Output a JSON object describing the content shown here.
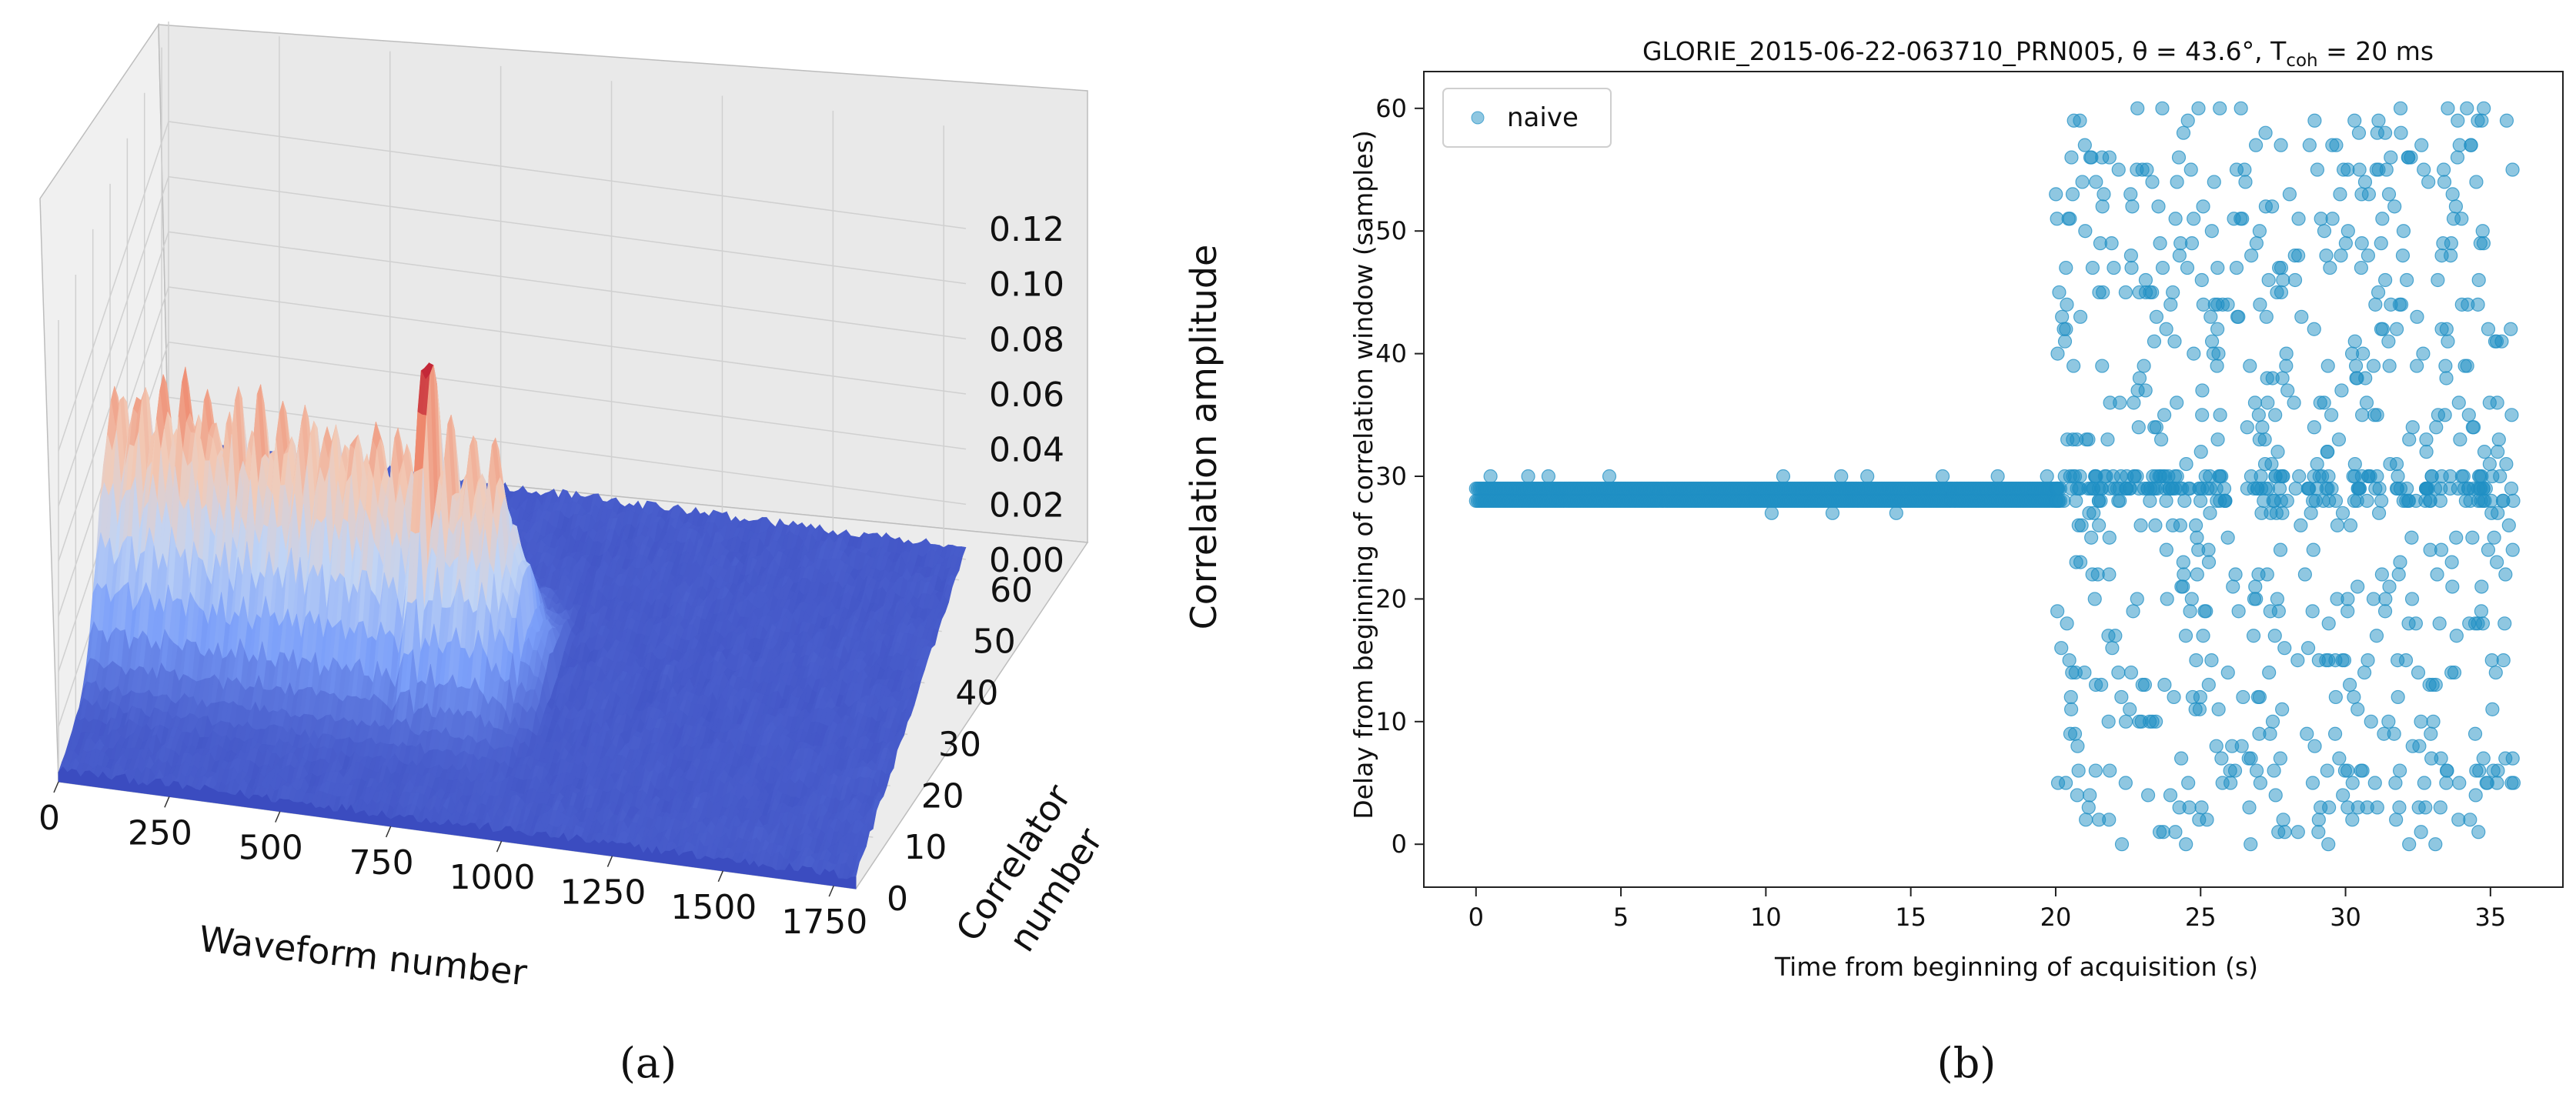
{
  "chart_data": [
    {
      "type": "surface3d",
      "panel_label": "(a)",
      "xlabel": "Waveform number",
      "ylabel": "Correlator number",
      "zlabel": "Correlation amplitude",
      "x_ticks": [
        "0",
        "250",
        "500",
        "750",
        "1000",
        "1250",
        "1500",
        "1750"
      ],
      "y_ticks": [
        "0",
        "10",
        "20",
        "30",
        "40",
        "50",
        "60"
      ],
      "z_ticks": [
        "0.00",
        "0.02",
        "0.04",
        "0.06",
        "0.08",
        "0.10",
        "0.12"
      ],
      "xlim": [
        0,
        1800
      ],
      "ylim": [
        0,
        64
      ],
      "zlim": [
        0,
        0.12
      ],
      "signal_region_waveforms": [
        0,
        1000
      ],
      "peak_correlator": 29,
      "peak_amplitude": 0.117,
      "peak_waveform": 720,
      "typical_signal_amplitude": [
        0.055,
        0.095
      ],
      "noise_floor_amplitude": 0.004,
      "colormap": [
        "#3b4cc0",
        "#7b9ff9",
        "#c0d4f5",
        "#f2cbb7",
        "#ee8468",
        "#b40426"
      ],
      "grid": true
    },
    {
      "type": "scatter",
      "panel_label": "(b)",
      "title": "GLORIE_2015-06-22-063710_PRN005, θ = 43.6°, T",
      "title_sub": "coh",
      "title_end": " = 20 ms",
      "xlabel": "Time from beginning of acquisition (s)",
      "ylabel": "Delay from beginning of correlation window (samples)",
      "x_ticks": [
        "0",
        "5",
        "10",
        "15",
        "20",
        "25",
        "30",
        "35"
      ],
      "y_ticks": [
        "0",
        "10",
        "20",
        "30",
        "40",
        "50",
        "60"
      ],
      "xlim": [
        -1.8,
        37.5
      ],
      "ylim": [
        -3.5,
        63
      ],
      "legend": {
        "label": "naive",
        "placement": "upper-left"
      },
      "marker_color": "#1f8fc4",
      "marker_alpha": 0.5,
      "tracked_segment": {
        "t_start": 0,
        "t_end": 20.2,
        "delays": [
          28,
          29
        ],
        "outliers": [
          [
            0.5,
            30
          ],
          [
            1.8,
            30
          ],
          [
            2.5,
            30
          ],
          [
            4.6,
            30
          ],
          [
            10.2,
            27
          ],
          [
            10.6,
            30
          ],
          [
            12.3,
            27
          ],
          [
            12.6,
            30
          ],
          [
            13.5,
            30
          ],
          [
            14.5,
            27
          ],
          [
            16.1,
            30
          ],
          [
            18.0,
            30
          ],
          [
            19.7,
            30
          ]
        ]
      },
      "noise_segment": {
        "t_start": 20.0,
        "t_end": 35.8,
        "delay_range": [
          0,
          60
        ]
      },
      "grid": false
    }
  ]
}
